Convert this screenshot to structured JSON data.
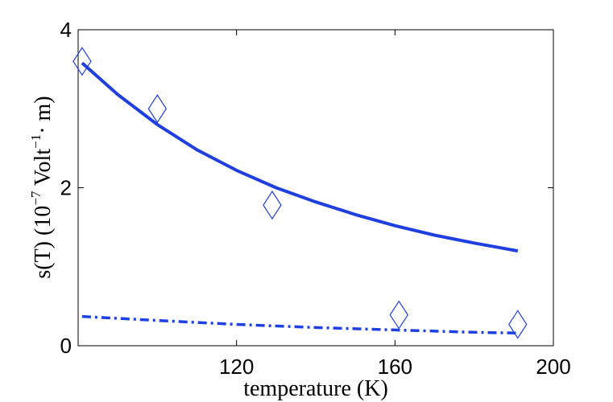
{
  "chart_data": {
    "type": "line",
    "xlabel": "temperature (K)",
    "ylabel": {
      "prefix": "s(T) (10",
      "exp1": "−7",
      "mid": " Volt",
      "exp2": "−1",
      "suffix": "· m)"
    },
    "xlim": [
      80,
      200
    ],
    "ylim": [
      0,
      4
    ],
    "x_ticks": [
      120,
      160,
      200
    ],
    "x_tick_labels": [
      "120",
      "160",
      "200"
    ],
    "y_ticks": [
      0,
      2,
      4
    ],
    "y_tick_labels": [
      "0",
      "2",
      "4"
    ],
    "grid": false,
    "legend": "none",
    "colors": {
      "series": "#1f3fe0",
      "axes": "#000000"
    },
    "series": [
      {
        "style": "solid",
        "kind": "line",
        "x": [
          81,
          90,
          100,
          110,
          120,
          130,
          140,
          150,
          160,
          170,
          180,
          191
        ],
        "y": [
          3.58,
          3.18,
          2.8,
          2.48,
          2.22,
          2.0,
          1.82,
          1.66,
          1.52,
          1.4,
          1.3,
          1.2
        ]
      },
      {
        "style": "dashdot",
        "kind": "line",
        "x": [
          81,
          100,
          120,
          140,
          160,
          180,
          191
        ],
        "y": [
          0.37,
          0.32,
          0.27,
          0.23,
          0.2,
          0.17,
          0.16
        ]
      },
      {
        "style": "marker",
        "kind": "scatter",
        "marker": "diamond",
        "x": [
          81,
          100,
          129,
          161,
          191
        ],
        "y": [
          3.6,
          3.0,
          1.78,
          0.39,
          0.27
        ]
      }
    ]
  }
}
